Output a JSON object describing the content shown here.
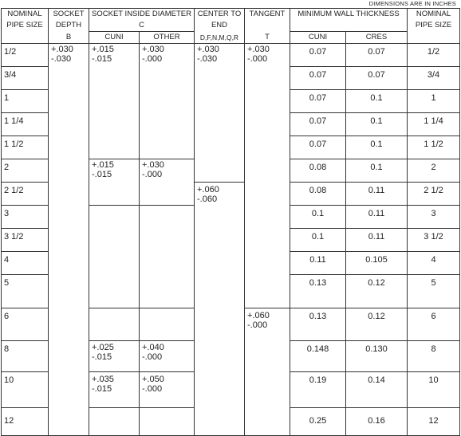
{
  "note": "DIMENSIONS ARE IN INCHES",
  "headers": {
    "nominal": [
      "NOMINAL",
      "PIPE SIZE"
    ],
    "socket_depth": [
      "SOCKET",
      "DEPTH",
      "B"
    ],
    "socket_inside": [
      "SOCKET INSIDE DIAMETER",
      "C"
    ],
    "cuni": "CUNI",
    "other": "OTHER",
    "center_to_end": [
      "CENTER TO",
      "END",
      "D,F,N,M,Q,R"
    ],
    "tangent": [
      "TANGENT",
      "",
      "T"
    ],
    "min_wall": "MINIMUM WALL THICKNESS",
    "cres": "CRES",
    "nominal_right": [
      "NOMINAL",
      "PIPE SIZE"
    ]
  },
  "rows": [
    {
      "size": "1/2",
      "cuni": "0.07",
      "cres": "0.07"
    },
    {
      "size": "3/4",
      "cuni": "0.07",
      "cres": "0.07"
    },
    {
      "size": "1",
      "cuni": "0.07",
      "cres": "0.1"
    },
    {
      "size": "1 1/4",
      "cuni": "0.07",
      "cres": "0.1"
    },
    {
      "size": "1 1/2",
      "cuni": "0.07",
      "cres": "0.1"
    },
    {
      "size": "2",
      "cuni": "0.08",
      "cres": "0.1"
    },
    {
      "size": "2 1/2",
      "cuni": "0.08",
      "cres": "0.11"
    },
    {
      "size": "3",
      "cuni": "0.1",
      "cres": "0.11"
    },
    {
      "size": "3 1/2",
      "cuni": "0.1",
      "cres": "0.11"
    },
    {
      "size": "4",
      "cuni": "0.11",
      "cres": "0.105"
    },
    {
      "size": "5",
      "cuni": "0.13",
      "cres": "0.12"
    },
    {
      "size": "6",
      "cuni": "0.13",
      "cres": "0.12"
    },
    {
      "size": "8",
      "cuni": "0.148",
      "cres": "0.130"
    },
    {
      "size": "10",
      "cuni": "0.19",
      "cres": "0.14"
    },
    {
      "size": "12",
      "cuni": "0.25",
      "cres": "0.16"
    }
  ],
  "tolerances": {
    "socket_depth": [
      "+.030",
      "-.030"
    ],
    "sid_1": {
      "cuni": [
        "+.015",
        "-.015"
      ],
      "other": [
        "+.030",
        "-.000"
      ]
    },
    "sid_2": {
      "cuni": [
        "+.015",
        "-.015"
      ],
      "other": [
        "+.030",
        "-.000"
      ]
    },
    "sid_8": {
      "cuni": [
        "+.025",
        "-.015"
      ],
      "other": [
        "+.040",
        "-.000"
      ]
    },
    "sid_10": {
      "cuni": [
        "+.035",
        "-.015"
      ],
      "other": [
        "+.050",
        "-.000"
      ]
    },
    "center_1": [
      "+.030",
      "-.030"
    ],
    "center_2": [
      "+.060",
      "-.060"
    ],
    "tangent_1": [
      "+.030",
      "-.000"
    ],
    "tangent_2": [
      "+.060",
      "-.000"
    ]
  }
}
